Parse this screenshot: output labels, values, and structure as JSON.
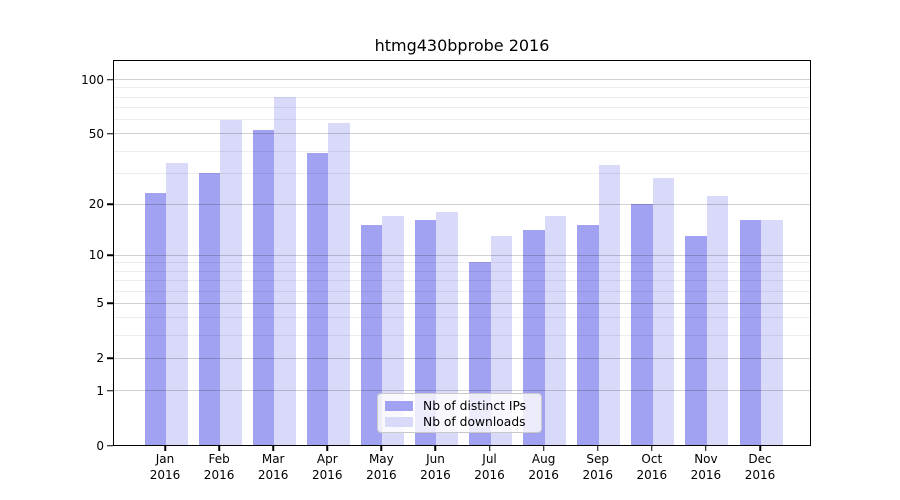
{
  "title": "htmg430bprobe 2016",
  "chart_data": {
    "type": "bar",
    "title": "htmg430bprobe 2016",
    "categories": [
      "Jan 2016",
      "Feb 2016",
      "Mar 2016",
      "Apr 2016",
      "May 2016",
      "Jun 2016",
      "Jul 2016",
      "Aug 2016",
      "Sep 2016",
      "Oct 2016",
      "Nov 2016",
      "Dec 2016"
    ],
    "x_tick_months": [
      "Jan",
      "Feb",
      "Mar",
      "Apr",
      "May",
      "Jun",
      "Jul",
      "Aug",
      "Sep",
      "Oct",
      "Nov",
      "Dec"
    ],
    "x_tick_year": "2016",
    "series": [
      {
        "name": "Nb of distinct IPs",
        "color": "#a2a2f2",
        "values": [
          23,
          30,
          52,
          39,
          15,
          16,
          9,
          14,
          15,
          20,
          13,
          16
        ]
      },
      {
        "name": "Nb of downloads",
        "color": "#d9d9f9",
        "values": [
          34,
          59,
          80,
          57,
          17,
          18,
          13,
          17,
          33,
          28,
          22,
          16
        ]
      }
    ],
    "xlabel": "",
    "ylabel": "",
    "y_scale": "log10(value+1)",
    "y_ticks": [
      0,
      1,
      2,
      5,
      10,
      20,
      50,
      100
    ],
    "y_minor_gridlines": [
      3,
      4,
      6,
      7,
      8,
      9,
      30,
      40,
      60,
      70,
      80,
      90
    ],
    "ylim": [
      0,
      126
    ],
    "grid": true,
    "legend_position": "lower center"
  }
}
